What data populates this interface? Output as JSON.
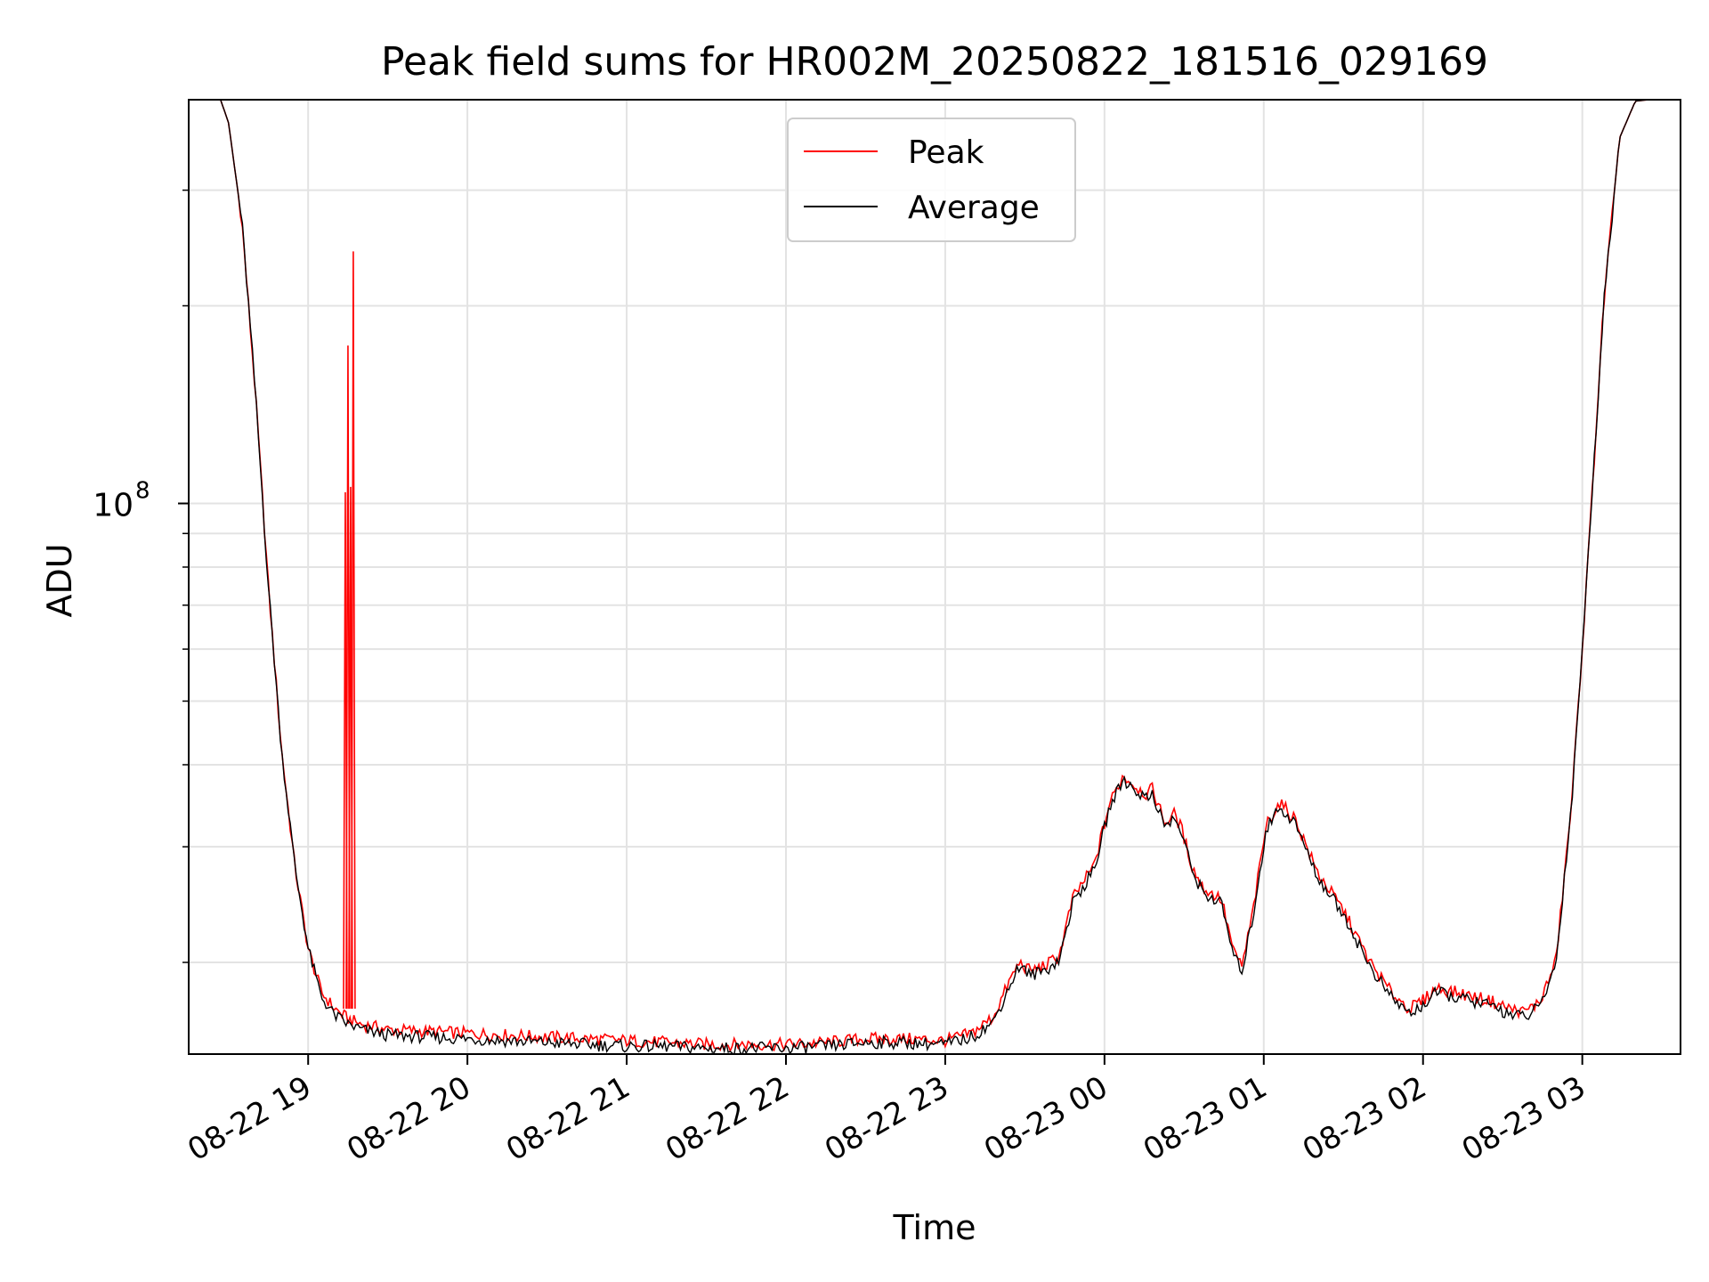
{
  "chart_data": {
    "type": "line",
    "title": "Peak field sums for HR002M_20250822_181516_029169",
    "xlabel": "Time",
    "ylabel": "ADU",
    "yscale": "log",
    "grid": true,
    "grid_color": "#e3e3e3",
    "legend_position": "top-center",
    "xlim": [
      "2025-08-22 18:15",
      "2025-08-23 03:37"
    ],
    "ylim": [
      14500000,
      412000000
    ],
    "x_ticks": [
      "2025-08-22 19:00",
      "2025-08-22 20:00",
      "2025-08-22 21:00",
      "2025-08-22 22:00",
      "2025-08-22 23:00",
      "2025-08-23 00:00",
      "2025-08-23 01:00",
      "2025-08-23 02:00",
      "2025-08-23 03:00"
    ],
    "x_tick_labels": [
      "08-22 19",
      "08-22 20",
      "08-22 21",
      "08-22 22",
      "08-22 23",
      "08-23 00",
      "08-23 01",
      "08-23 02",
      "08-23 03"
    ],
    "y_tick_value": 100000000,
    "y_tick_label": "10",
    "y_tick_label_exponent": "8",
    "y_minor_ticks": [
      20000000,
      30000000,
      40000000,
      50000000,
      60000000,
      70000000,
      80000000,
      90000000,
      200000000,
      300000000
    ],
    "x": [
      "2025-08-22 18:27",
      "2025-08-22 18:30",
      "2025-08-22 18:35",
      "2025-08-22 18:40",
      "2025-08-22 18:45",
      "2025-08-22 18:50",
      "2025-08-22 18:55",
      "2025-08-22 19:00",
      "2025-08-22 19:05",
      "2025-08-22 19:10",
      "2025-08-22 19:15",
      "2025-08-22 19:20",
      "2025-08-22 19:30",
      "2025-08-22 19:45",
      "2025-08-22 20:00",
      "2025-08-22 20:15",
      "2025-08-22 20:30",
      "2025-08-22 20:45",
      "2025-08-22 21:00",
      "2025-08-22 21:15",
      "2025-08-22 21:30",
      "2025-08-22 21:45",
      "2025-08-22 22:00",
      "2025-08-22 22:15",
      "2025-08-22 22:30",
      "2025-08-22 22:45",
      "2025-08-22 23:00",
      "2025-08-22 23:10",
      "2025-08-22 23:18",
      "2025-08-22 23:25",
      "2025-08-22 23:28",
      "2025-08-22 23:32",
      "2025-08-22 23:38",
      "2025-08-22 23:43",
      "2025-08-22 23:48",
      "2025-08-22 23:52",
      "2025-08-22 23:56",
      "2025-08-23 00:02",
      "2025-08-23 00:07",
      "2025-08-23 00:12",
      "2025-08-23 00:16",
      "2025-08-23 00:18",
      "2025-08-23 00:20",
      "2025-08-23 00:23",
      "2025-08-23 00:26",
      "2025-08-23 00:29",
      "2025-08-23 00:33",
      "2025-08-23 00:37",
      "2025-08-23 00:40",
      "2025-08-23 00:44",
      "2025-08-23 00:49",
      "2025-08-23 00:52",
      "2025-08-23 00:56",
      "2025-08-23 01:01",
      "2025-08-23 01:06",
      "2025-08-23 01:12",
      "2025-08-23 01:20",
      "2025-08-23 01:30",
      "2025-08-23 01:40",
      "2025-08-23 01:48",
      "2025-08-23 01:55",
      "2025-08-23 02:00",
      "2025-08-23 02:05",
      "2025-08-23 02:15",
      "2025-08-23 02:25",
      "2025-08-23 02:33",
      "2025-08-23 02:38",
      "2025-08-23 02:44",
      "2025-08-23 02:50",
      "2025-08-23 02:56",
      "2025-08-23 03:02",
      "2025-08-23 03:08",
      "2025-08-23 03:14",
      "2025-08-23 03:20",
      "2025-08-23 03:25",
      "2025-08-23 03:37"
    ],
    "series": [
      {
        "name": "Peak",
        "color": "#ff0000",
        "values": [
          412000000,
          380000000,
          270000000,
          150000000,
          75000000,
          42000000,
          28000000,
          21000000,
          18000000,
          17000000,
          16400000,
          16100000,
          15800000,
          15700000,
          15600000,
          15500000,
          15400000,
          15300000,
          15200000,
          15100000,
          15000000,
          15000000,
          15000000,
          15100000,
          15300000,
          15300000,
          15200000,
          15600000,
          16500000,
          19000000,
          20000000,
          19400000,
          19800000,
          20500000,
          25000000,
          26500000,
          28000000,
          35000000,
          38500000,
          37000000,
          36000000,
          36800000,
          35000000,
          32500000,
          33800000,
          32000000,
          28000000,
          26000000,
          25500000,
          25000000,
          20500000,
          19800000,
          24000000,
          32500000,
          35000000,
          33000000,
          27500000,
          24000000,
          20000000,
          18000000,
          17000000,
          17500000,
          18300000,
          17900000,
          17500000,
          17000000,
          16800000,
          17400000,
          20000000,
          35000000,
          80000000,
          200000000,
          360000000,
          410000000,
          412000000,
          412000000
        ]
      },
      {
        "name": "Average",
        "color": "#000000",
        "values": [
          412000000,
          380000000,
          270000000,
          150000000,
          75000000,
          42000000,
          28000000,
          21000000,
          17700000,
          16600000,
          16100000,
          15800000,
          15500000,
          15400000,
          15300000,
          15200000,
          15100000,
          15000000,
          14900000,
          14900000,
          14800000,
          14800000,
          14800000,
          14900000,
          15100000,
          15100000,
          15000000,
          15400000,
          16200000,
          18700000,
          19800000,
          19100000,
          19500000,
          20200000,
          24600000,
          26100000,
          27600000,
          34500000,
          38000000,
          36500000,
          35500000,
          36300000,
          34500000,
          32000000,
          33300000,
          31500000,
          27600000,
          25600000,
          25100000,
          24600000,
          20200000,
          19500000,
          23600000,
          32000000,
          34500000,
          32500000,
          27100000,
          23700000,
          19700000,
          17700000,
          16700000,
          17200000,
          18000000,
          17600000,
          17200000,
          16700000,
          16500000,
          17100000,
          19800000,
          35000000,
          80000000,
          200000000,
          360000000,
          410000000,
          412000000,
          412000000
        ]
      }
    ],
    "spikes": [
      {
        "series": "Peak",
        "x": "2025-08-22 19:14",
        "value": 104000000
      },
      {
        "series": "Peak",
        "x": "2025-08-22 19:15",
        "value": 174000000
      },
      {
        "series": "Peak",
        "x": "2025-08-22 19:16",
        "value": 106000000
      },
      {
        "series": "Peak",
        "x": "2025-08-22 19:17",
        "value": 242000000
      }
    ]
  }
}
